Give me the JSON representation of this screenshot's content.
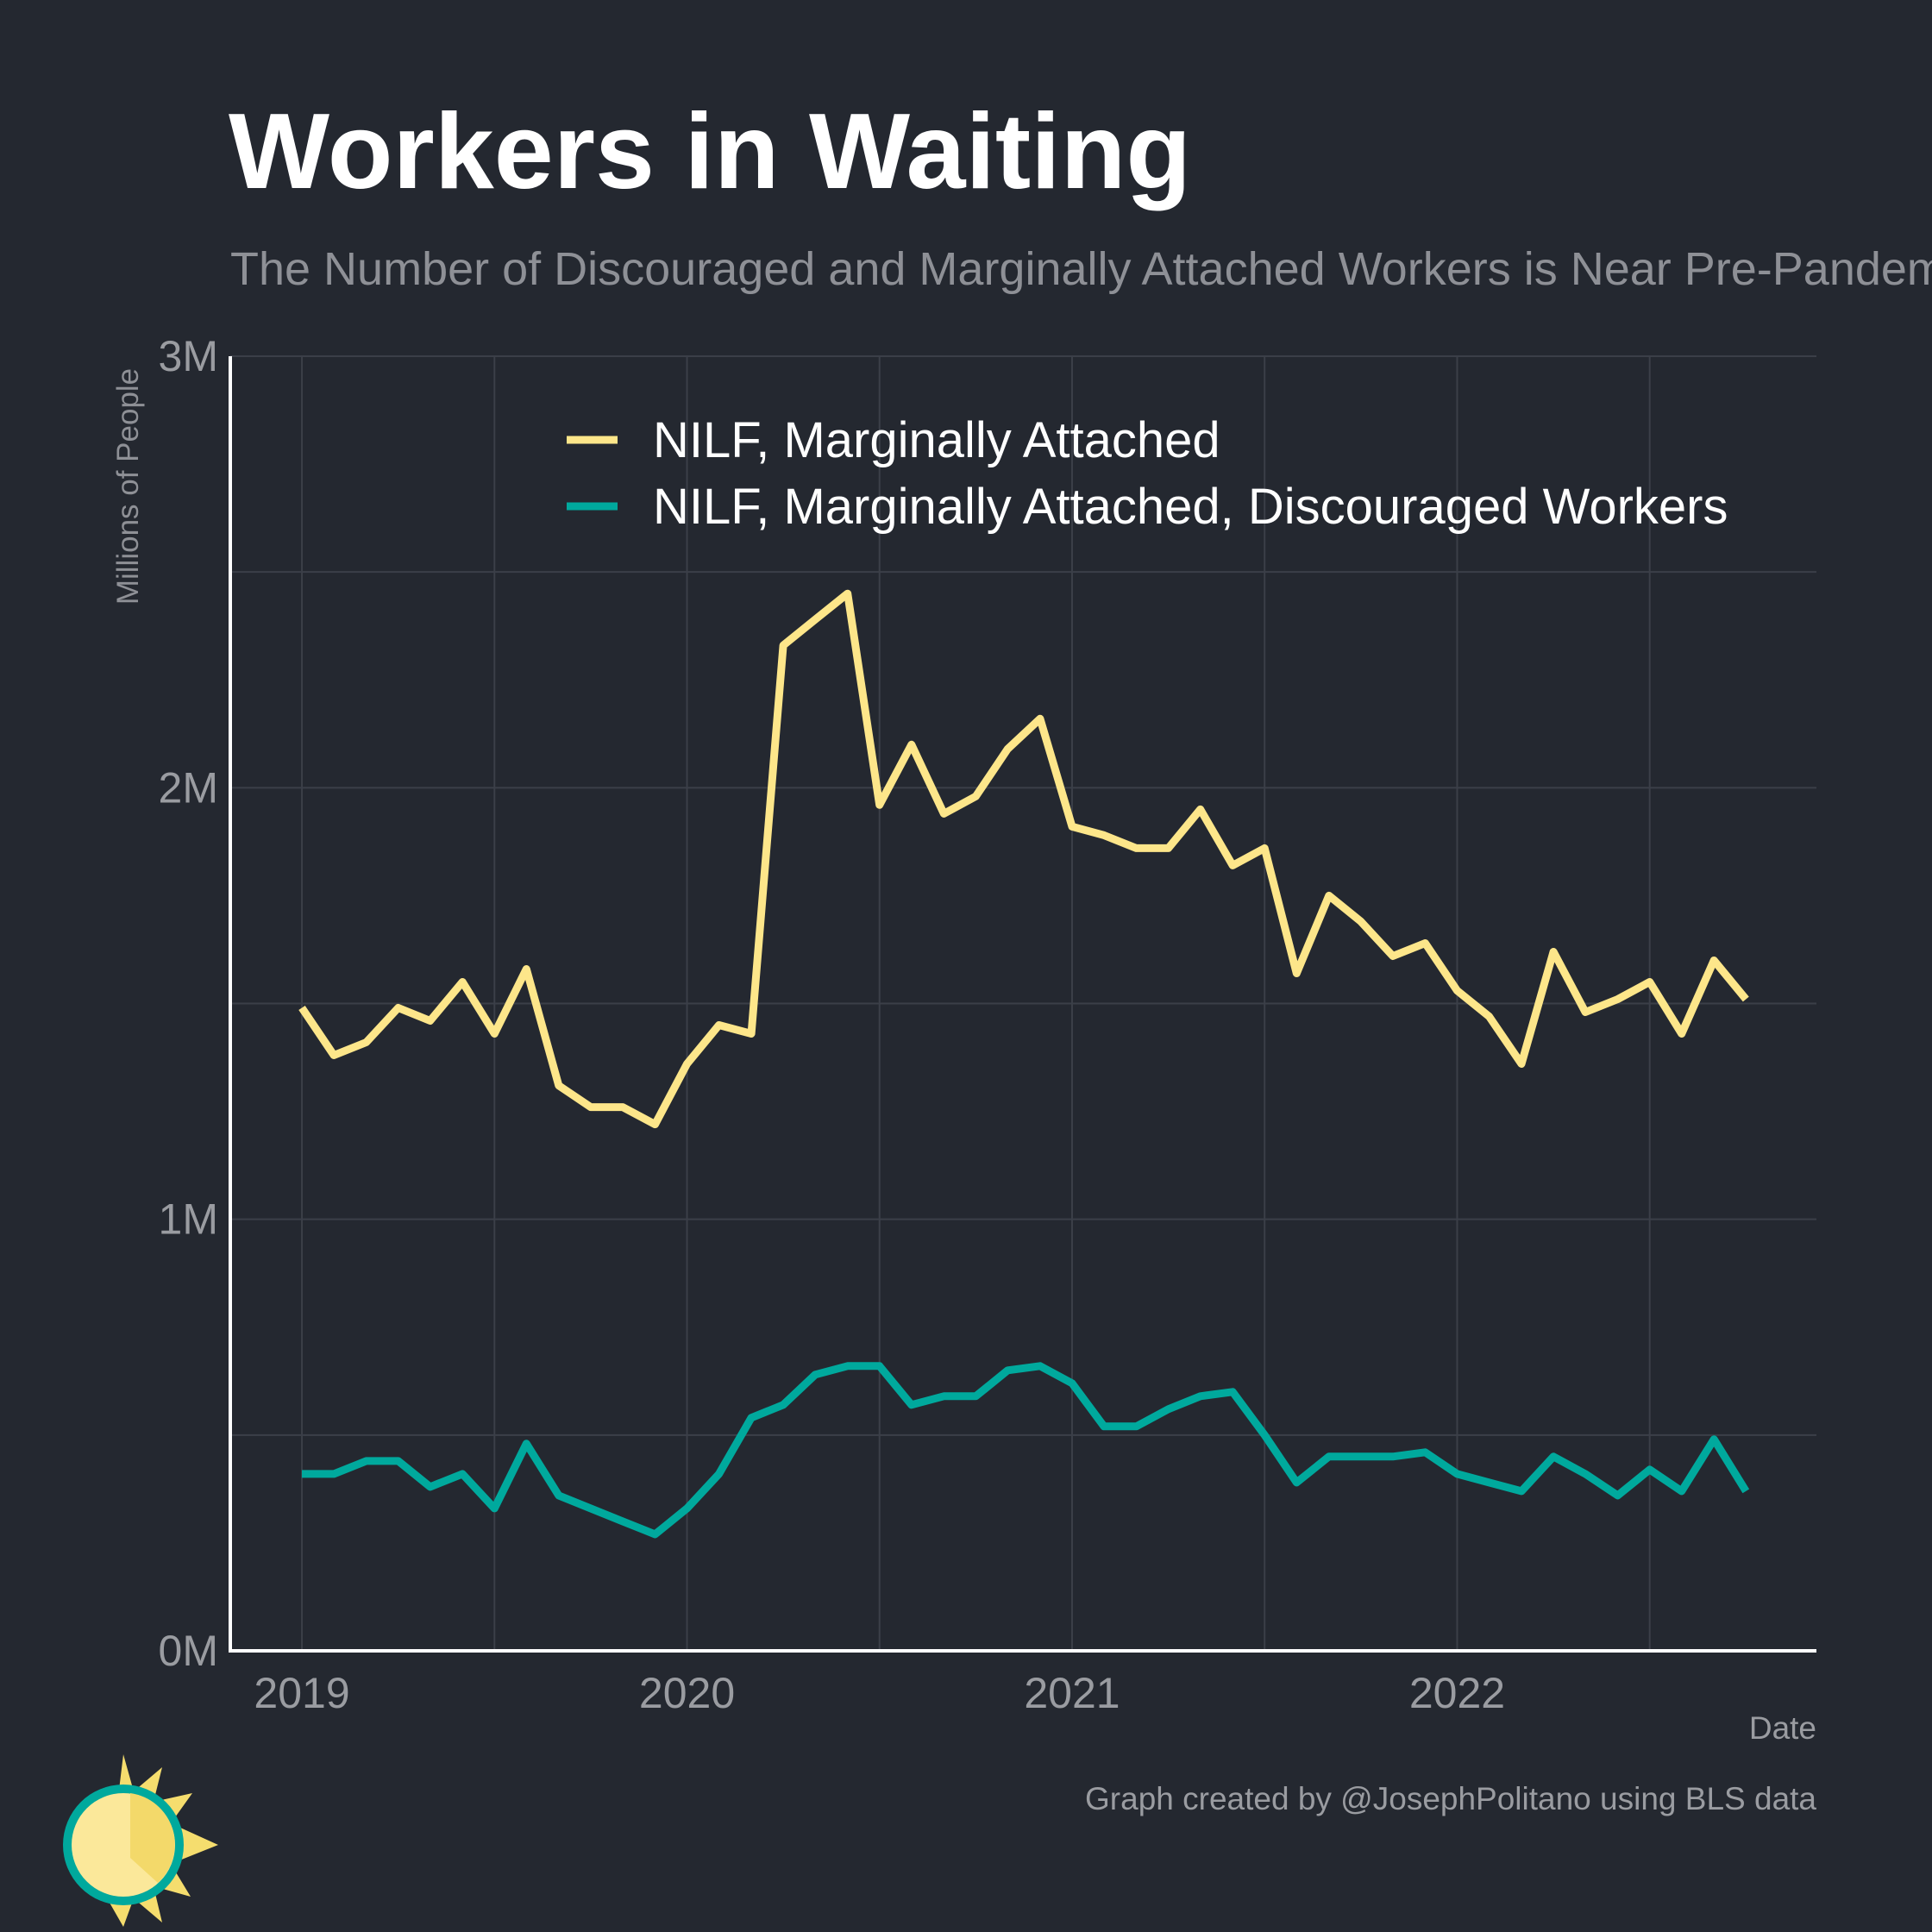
{
  "chart_data": {
    "type": "line",
    "title": "Workers in Waiting",
    "subtitle": "The Number of Discouraged and Marginally Attached Workers is Near Pre-Pandemic Levels",
    "y_label": "Millions of People",
    "x_label": "Date",
    "caption": "Graph created by @JosephPolitano using BLS data",
    "x": [
      2019,
      2019.083,
      2019.167,
      2019.25,
      2019.333,
      2019.417,
      2019.5,
      2019.583,
      2019.667,
      2019.75,
      2019.833,
      2019.917,
      2020,
      2020.083,
      2020.167,
      2020.25,
      2020.333,
      2020.417,
      2020.5,
      2020.583,
      2020.667,
      2020.75,
      2020.833,
      2020.917,
      2021,
      2021.083,
      2021.167,
      2021.25,
      2021.333,
      2021.417,
      2021.5,
      2021.583,
      2021.667,
      2021.75,
      2021.833,
      2021.917,
      2022,
      2022.083,
      2022.167,
      2022.25,
      2022.333,
      2022.417,
      2022.5,
      2022.583,
      2022.667,
      2022.75
    ],
    "series": [
      {
        "name": "NILF, Marginally Attached",
        "color": "#fde68a",
        "values": [
          1.49,
          1.38,
          1.41,
          1.49,
          1.46,
          1.55,
          1.43,
          1.58,
          1.31,
          1.26,
          1.26,
          1.22,
          1.36,
          1.45,
          1.43,
          2.33,
          2.39,
          2.45,
          1.96,
          2.1,
          1.94,
          1.98,
          2.09,
          2.16,
          1.91,
          1.89,
          1.86,
          1.86,
          1.95,
          1.82,
          1.86,
          1.57,
          1.75,
          1.69,
          1.61,
          1.64,
          1.53,
          1.47,
          1.36,
          1.62,
          1.48,
          1.51,
          1.55,
          1.43,
          1.6,
          1.51
        ]
      },
      {
        "name": "NILF, Marginally Attached, Discouraged Workers",
        "color": "#00a99d",
        "values": [
          0.41,
          0.41,
          0.44,
          0.44,
          0.38,
          0.41,
          0.33,
          0.48,
          0.36,
          0.33,
          0.3,
          0.27,
          0.33,
          0.41,
          0.54,
          0.57,
          0.64,
          0.66,
          0.66,
          0.57,
          0.59,
          0.59,
          0.65,
          0.66,
          0.62,
          0.52,
          0.52,
          0.56,
          0.59,
          0.6,
          0.5,
          0.39,
          0.45,
          0.45,
          0.45,
          0.46,
          0.41,
          0.39,
          0.37,
          0.45,
          0.41,
          0.36,
          0.42,
          0.37,
          0.49,
          0.37
        ]
      }
    ],
    "xlim": [
      2018.814,
      2022.933
    ],
    "xticks": [
      2019,
      2020,
      2021,
      2022
    ],
    "minor_xticks": [
      2019.5,
      2020.5,
      2021.5,
      2022.5
    ],
    "ylim": [
      0,
      3
    ],
    "yticks": [
      {
        "value": 0,
        "label": "0M"
      },
      {
        "value": 1,
        "label": "1M"
      },
      {
        "value": 2,
        "label": "2M"
      },
      {
        "value": 3,
        "label": "3M"
      }
    ],
    "minor_yticks": [
      0.5,
      1.5,
      2.5
    ],
    "grid": true,
    "legend": "top"
  }
}
